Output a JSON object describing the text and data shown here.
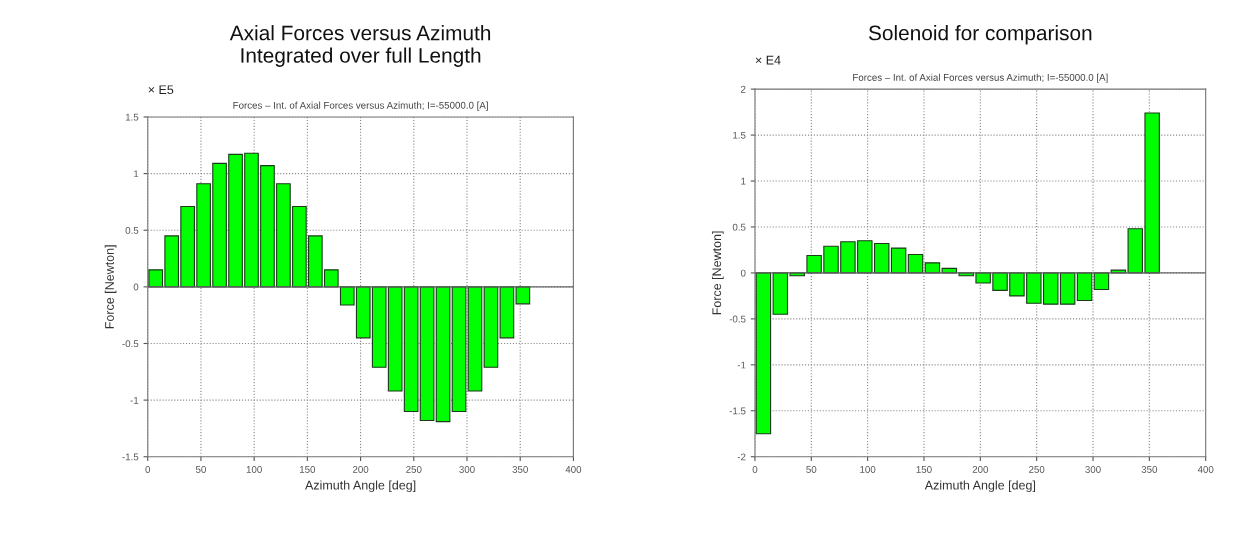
{
  "chart_data": [
    {
      "type": "bar",
      "title": "Axial Forces versus Azimuth\nIntegrated over full Length",
      "subtitle": "Forces – Int. of Axial Forces versus Azimuth; I=-55000.0 [A]",
      "xlabel": "Azimuth Angle [deg]",
      "ylabel": "Force [Newton]",
      "annotations": [
        "× E5"
      ],
      "x": [
        7.5,
        22.5,
        37.5,
        52.5,
        67.5,
        82.5,
        97.5,
        112.5,
        127.5,
        142.5,
        157.5,
        172.5,
        187.5,
        202.5,
        217.5,
        232.5,
        247.5,
        262.5,
        277.5,
        292.5,
        307.5,
        322.5,
        337.5,
        352.5
      ],
      "values": [
        0.15,
        0.45,
        0.71,
        0.91,
        1.09,
        1.17,
        1.18,
        1.07,
        0.91,
        0.71,
        0.45,
        0.15,
        -0.16,
        -0.45,
        -0.71,
        -0.92,
        -1.1,
        -1.18,
        -1.19,
        -1.1,
        -0.92,
        -0.71,
        -0.45,
        -0.15
      ],
      "color": "#00ff00",
      "xlim": [
        0,
        400
      ],
      "xticks": [
        0,
        50,
        100,
        150,
        200,
        250,
        300,
        350,
        400
      ],
      "ylim": [
        -1.5,
        1.5
      ],
      "yticks": [
        -1.5,
        -1,
        -0.5,
        0,
        0.5,
        1,
        1.5
      ],
      "grid": true
    },
    {
      "type": "bar",
      "title": "Solenoid for comparison",
      "subtitle": "Forces – Int. of Axial Forces versus Azimuth; I=-55000.0 [A]",
      "xlabel": "Azimuth Angle [deg]",
      "ylabel": "Force [Newton]",
      "annotations": [
        "× E4"
      ],
      "x": [
        7.5,
        22.5,
        37.5,
        52.5,
        67.5,
        82.5,
        97.5,
        112.5,
        127.5,
        142.5,
        157.5,
        172.5,
        187.5,
        202.5,
        217.5,
        232.5,
        247.5,
        262.5,
        277.5,
        292.5,
        307.5,
        322.5,
        337.5,
        352.5
      ],
      "values": [
        -1.75,
        -0.45,
        -0.03,
        0.19,
        0.29,
        0.34,
        0.35,
        0.32,
        0.27,
        0.2,
        0.11,
        0.05,
        -0.03,
        -0.11,
        -0.19,
        -0.25,
        -0.33,
        -0.34,
        -0.34,
        -0.3,
        -0.18,
        0.03,
        0.48,
        1.74
      ],
      "color": "#00ff00",
      "xlim": [
        0,
        400
      ],
      "xticks": [
        0,
        50,
        100,
        150,
        200,
        250,
        300,
        350,
        400
      ],
      "ylim": [
        -2,
        2
      ],
      "yticks": [
        -2,
        -1.5,
        -1,
        -0.5,
        0,
        0.5,
        1,
        1.5,
        2
      ],
      "grid": true
    }
  ]
}
